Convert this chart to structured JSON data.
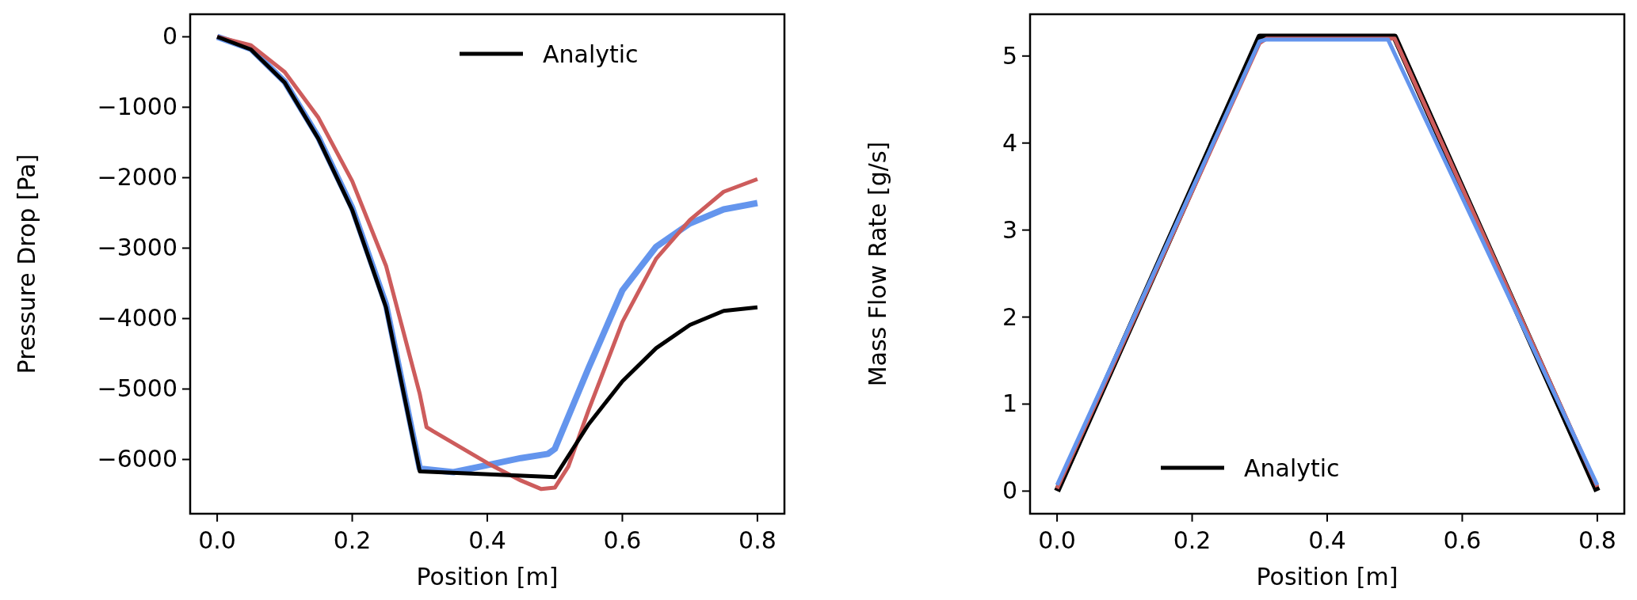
{
  "chart_data": [
    {
      "type": "line",
      "xlabel": "Position [m]",
      "ylabel": "Pressure Drop [Pa]",
      "xlim": [
        -0.04,
        0.84
      ],
      "ylim": [
        -6770,
        320
      ],
      "xticks": [
        {
          "value": 0,
          "label": "0.0"
        },
        0.2,
        0.4,
        0.6,
        0.8
      ],
      "yticks": [
        0,
        {
          "value": -1000,
          "label": "−1000"
        },
        {
          "value": -2000,
          "label": "−2000"
        },
        {
          "value": -3000,
          "label": "−3000"
        },
        {
          "value": -4000,
          "label": "−4000"
        },
        {
          "value": -5000,
          "label": "−5000"
        },
        {
          "value": -6000,
          "label": "−6000"
        }
      ],
      "legend": "top right",
      "grid": false,
      "series": [
        {
          "color": "#6495ed",
          "x": [
            0,
            0.05,
            0.1,
            0.15,
            0.2,
            0.25,
            0.3,
            0.35,
            0.4,
            0.45,
            0.49,
            0.5,
            0.55,
            0.6,
            0.65,
            0.7,
            0.75,
            0.8
          ],
          "values": [
            0,
            -170,
            -640,
            -1430,
            -2430,
            -3800,
            -6130,
            -6180,
            -6080,
            -5980,
            -5920,
            -5850,
            -4700,
            -3600,
            -2980,
            -2650,
            -2450,
            -2360
          ]
        },
        {
          "color": "#cd5c5c",
          "x": [
            0,
            0.05,
            0.1,
            0.15,
            0.2,
            0.25,
            0.3,
            0.31,
            0.32,
            0.4,
            0.45,
            0.48,
            0.5,
            0.52,
            0.55,
            0.6,
            0.65,
            0.7,
            0.75,
            0.8
          ],
          "values": [
            0,
            -120,
            -500,
            -1150,
            -2050,
            -3250,
            -5070,
            -5540,
            -5600,
            -6050,
            -6300,
            -6420,
            -6400,
            -6100,
            -5300,
            -4050,
            -3150,
            -2600,
            -2200,
            -2020
          ]
        },
        {
          "name": "Analytic",
          "color": "#000000",
          "x": [
            0,
            0.05,
            0.1,
            0.15,
            0.2,
            0.25,
            0.3,
            0.5,
            0.55,
            0.6,
            0.65,
            0.7,
            0.75,
            0.8
          ],
          "values": [
            0,
            -180,
            -650,
            -1450,
            -2460,
            -3840,
            -6170,
            -6250,
            -5500,
            -4890,
            -4420,
            -4090,
            -3890,
            -3840
          ]
        }
      ]
    },
    {
      "type": "line",
      "xlabel": "Position [m]",
      "ylabel": "Mass Flow Rate [g/s]",
      "xlim": [
        -0.04,
        0.84
      ],
      "ylim": [
        -0.26,
        5.48
      ],
      "xticks": [
        {
          "value": 0,
          "label": "0.0"
        },
        0.2,
        0.4,
        0.6,
        0.8
      ],
      "yticks": [
        0,
        1,
        2,
        3,
        4,
        5
      ],
      "legend": "bottom",
      "grid": false,
      "series": [
        {
          "name": "Analytic",
          "color": "#000000",
          "x": [
            0,
            0.3,
            0.5,
            0.8
          ],
          "values": [
            0,
            5.22,
            5.22,
            0
          ]
        },
        {
          "color": "#cd5c5c",
          "x": [
            0,
            0.3,
            0.31,
            0.5,
            0.8
          ],
          "values": [
            0.03,
            5.15,
            5.2,
            5.2,
            0.05
          ]
        },
        {
          "color": "#6495ed",
          "x": [
            0,
            0.3,
            0.31,
            0.49,
            0.8
          ],
          "values": [
            0.07,
            5.17,
            5.19,
            5.19,
            0.07
          ]
        }
      ]
    }
  ]
}
